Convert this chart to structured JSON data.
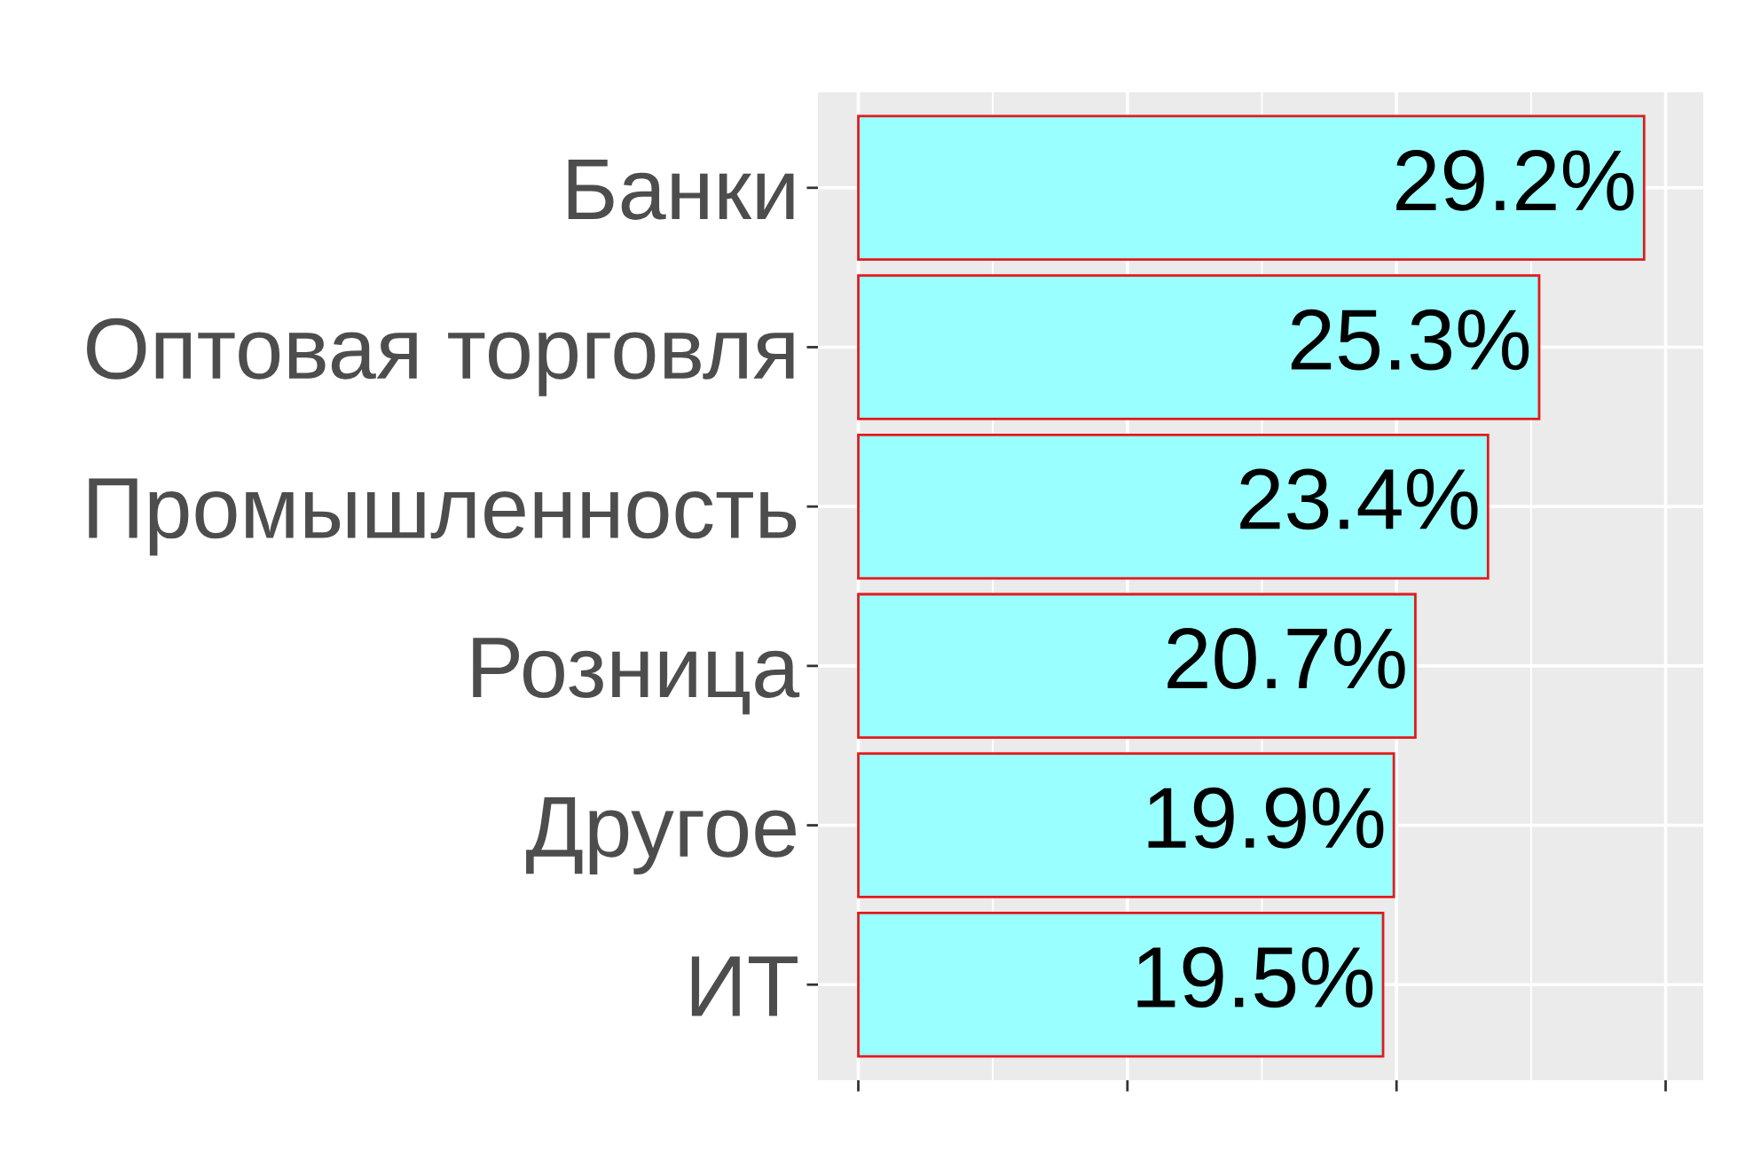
{
  "chart_data": {
    "type": "bar",
    "orientation": "horizontal",
    "categories": [
      "Банки",
      "Оптовая торговля",
      "Промышленность",
      "Розница",
      "Другое",
      "ИТ"
    ],
    "values": [
      29.2,
      25.3,
      23.4,
      20.7,
      19.9,
      19.5
    ],
    "value_labels": [
      "29.2%",
      "25.3%",
      "23.4%",
      "20.7%",
      "19.9%",
      "19.5%"
    ],
    "color": "#99ffff",
    "xlim": [
      -1.5,
      31.4
    ],
    "xticks": [
      {
        "value": 0,
        "label": null
      },
      {
        "value": 10,
        "label": null
      },
      {
        "value": 20,
        "label": null
      },
      {
        "value": 30,
        "label": null
      }
    ],
    "tick_labels": "y",
    "grid": true
  }
}
